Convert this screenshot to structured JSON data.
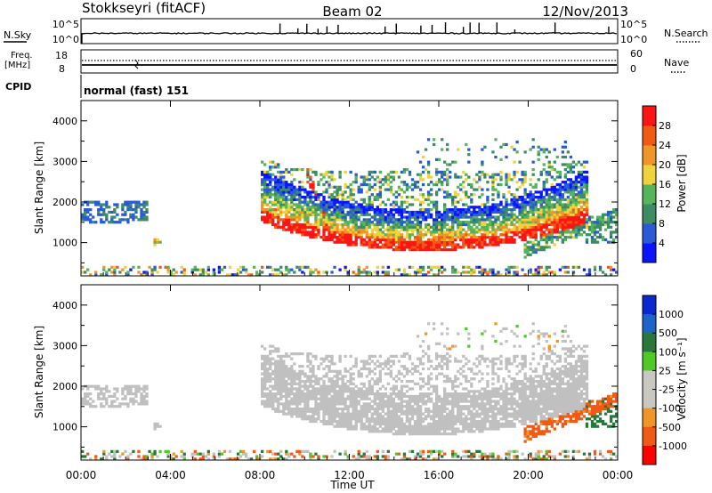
{
  "header": {
    "station": "Stokkseyri (fitACF)",
    "beam": "Beam 02",
    "date": "12/Nov/2013"
  },
  "strip_labels": {
    "nsky": "N.Sky",
    "nsky_top": "10^5",
    "nsky_bottom": "10^0",
    "nsearch": "N.Search",
    "nsearch_top": "10^5",
    "nsearch_bottom": "10^0",
    "freq": "Freq.",
    "freq_unit": "[MHz]",
    "freq_top": "18",
    "freq_bottom": "8",
    "nave": "Nave",
    "nave_top": "60",
    "nave_bottom": "0",
    "cpid": "CPID",
    "cpid_text": "normal (fast) 151"
  },
  "colors": {
    "power": [
      "#0a14ff",
      "#2a5ad8",
      "#3c8c64",
      "#56b45a",
      "#f0d23c",
      "#f09628",
      "#f05a14",
      "#ff1414"
    ],
    "velocity": [
      "#ff0000",
      "#f05a14",
      "#f09628",
      "#c8c8c0",
      "#c8c8c0",
      "#50c828",
      "#28783c",
      "#1e64c8",
      "#0a28d2"
    ],
    "ground_scatter": "#c0c0c0"
  },
  "chart_data": [
    {
      "type": "heatmap",
      "panel": "power",
      "ylabel": "Slant Range [km]",
      "yticks": [
        "1000",
        "2000",
        "3000",
        "4000"
      ],
      "colorbar_label": "Power [dB]",
      "colorbar_ticks": [
        "4",
        "8",
        "12",
        "16",
        "20",
        "24",
        "28"
      ],
      "clim": [
        0,
        30
      ],
      "ylim": [
        180,
        4500
      ]
    },
    {
      "type": "heatmap",
      "panel": "velocity",
      "ylabel": "Slant Range [km]",
      "yticks": [
        "1000",
        "2000",
        "3000",
        "4000"
      ],
      "xlabel": "Time UT",
      "xticks": [
        "00:00",
        "04:00",
        "08:00",
        "12:00",
        "16:00",
        "20:00",
        "00:00"
      ],
      "colorbar_label": "Velocity [m s⁻¹]",
      "colorbar_ticks": [
        "1000",
        "500",
        "100",
        "25",
        "-25",
        "-100",
        "-500",
        "-1000"
      ],
      "ylim": [
        180,
        4500
      ]
    }
  ]
}
